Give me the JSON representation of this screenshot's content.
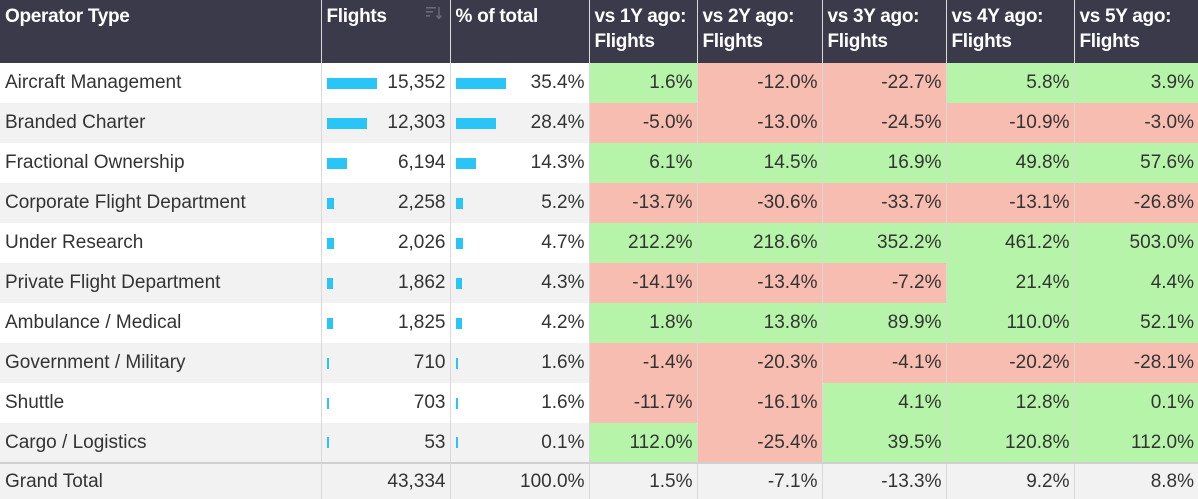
{
  "colors": {
    "header_bg": "#3a3a4a",
    "bar": "#29c5f6",
    "positive": "#b6f5a9",
    "negative": "#f7bdb0"
  },
  "headers": {
    "operator_type": "Operator Type",
    "flights": "Flights",
    "pct_total": "% of total",
    "vs1": "vs 1Y ago: Flights",
    "vs2": "vs 2Y ago: Flights",
    "vs3": "vs 3Y ago: Flights",
    "vs4": "vs 4Y ago: Flights",
    "vs5": "vs 5Y ago: Flights",
    "sort_icon": "sort-descending-icon"
  },
  "rows": [
    {
      "name": "Aircraft Management",
      "flights": "15,352",
      "flights_share": 1.0,
      "pct": "35.4%",
      "pct_share": 1.0,
      "d1": "1.6%",
      "d2": "-12.0%",
      "d3": "-22.7%",
      "d4": "5.8%",
      "d5": "3.9%"
    },
    {
      "name": "Branded Charter",
      "flights": "12,303",
      "flights_share": 0.801,
      "pct": "28.4%",
      "pct_share": 0.802,
      "d1": "-5.0%",
      "d2": "-13.0%",
      "d3": "-24.5%",
      "d4": "-10.9%",
      "d5": "-3.0%"
    },
    {
      "name": "Fractional Ownership",
      "flights": "6,194",
      "flights_share": 0.403,
      "pct": "14.3%",
      "pct_share": 0.404,
      "d1": "6.1%",
      "d2": "14.5%",
      "d3": "16.9%",
      "d4": "49.8%",
      "d5": "57.6%"
    },
    {
      "name": "Corporate Flight Department",
      "flights": "2,258",
      "flights_share": 0.147,
      "pct": "5.2%",
      "pct_share": 0.147,
      "d1": "-13.7%",
      "d2": "-30.6%",
      "d3": "-33.7%",
      "d4": "-13.1%",
      "d5": "-26.8%"
    },
    {
      "name": "Under Research",
      "flights": "2,026",
      "flights_share": 0.132,
      "pct": "4.7%",
      "pct_share": 0.133,
      "d1": "212.2%",
      "d2": "218.6%",
      "d3": "352.2%",
      "d4": "461.2%",
      "d5": "503.0%"
    },
    {
      "name": "Private Flight Department",
      "flights": "1,862",
      "flights_share": 0.121,
      "pct": "4.3%",
      "pct_share": 0.121,
      "d1": "-14.1%",
      "d2": "-13.4%",
      "d3": "-7.2%",
      "d4": "21.4%",
      "d5": "4.4%"
    },
    {
      "name": "Ambulance / Medical",
      "flights": "1,825",
      "flights_share": 0.119,
      "pct": "4.2%",
      "pct_share": 0.119,
      "d1": "1.8%",
      "d2": "13.8%",
      "d3": "89.9%",
      "d4": "110.0%",
      "d5": "52.1%"
    },
    {
      "name": "Government / Military",
      "flights": "710",
      "flights_share": 0.046,
      "pct": "1.6%",
      "pct_share": 0.045,
      "d1": "-1.4%",
      "d2": "-20.3%",
      "d3": "-4.1%",
      "d4": "-20.2%",
      "d5": "-28.1%"
    },
    {
      "name": "Shuttle",
      "flights": "703",
      "flights_share": 0.046,
      "pct": "1.6%",
      "pct_share": 0.045,
      "d1": "-11.7%",
      "d2": "-16.1%",
      "d3": "4.1%",
      "d4": "12.8%",
      "d5": "0.1%"
    },
    {
      "name": "Cargo / Logistics",
      "flights": "53",
      "flights_share": 0.003,
      "pct": "0.1%",
      "pct_share": 0.003,
      "d1": "112.0%",
      "d2": "-25.4%",
      "d3": "39.5%",
      "d4": "120.8%",
      "d5": "112.0%"
    }
  ],
  "total": {
    "name": "Grand Total",
    "flights": "43,334",
    "pct": "100.0%",
    "d1": "1.5%",
    "d2": "-7.1%",
    "d3": "-13.3%",
    "d4": "9.2%",
    "d5": "8.8%"
  }
}
